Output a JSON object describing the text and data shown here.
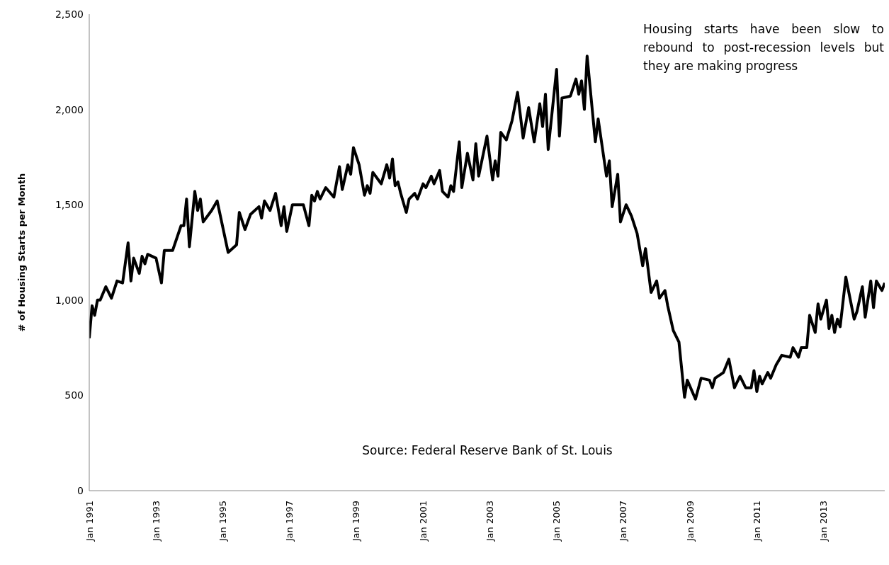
{
  "chart_data": {
    "type": "line",
    "ylabel": "# of Housing Starts per Month",
    "annotations": [
      "Housing starts have been slow to rebound to post-recession levels but they are making progress",
      "Source:  Federal Reserve Bank of St. Louis"
    ],
    "x": [
      "1991-01",
      "1991-02",
      "1991-03",
      "1991-04",
      "1991-05",
      "1991-07",
      "1991-09",
      "1991-11",
      "1992-01",
      "1992-03",
      "1992-04",
      "1992-05",
      "1992-07",
      "1992-08",
      "1992-09",
      "1992-10",
      "1993-01",
      "1993-03",
      "1993-04",
      "1993-07",
      "1993-10",
      "1993-11",
      "1993-12",
      "1994-01",
      "1994-03",
      "1994-04",
      "1994-05",
      "1994-06",
      "1994-09",
      "1994-11",
      "1995-03",
      "1995-06",
      "1995-07",
      "1995-09",
      "1995-11",
      "1996-02",
      "1996-03",
      "1996-04",
      "1996-06",
      "1996-08",
      "1996-10",
      "1996-11",
      "1996-12",
      "1997-02",
      "1997-06",
      "1997-08",
      "1997-09",
      "1997-10",
      "1997-11",
      "1997-12",
      "1998-02",
      "1998-05",
      "1998-07",
      "1998-08",
      "1998-10",
      "1998-11",
      "1998-12",
      "1999-02",
      "1999-04",
      "1999-05",
      "1999-06",
      "1999-07",
      "1999-10",
      "1999-12",
      "2000-01",
      "2000-02",
      "2000-03",
      "2000-04",
      "2000-05",
      "2000-07",
      "2000-08",
      "2000-10",
      "2000-11",
      "2001-01",
      "2001-02",
      "2001-04",
      "2001-05",
      "2001-07",
      "2001-08",
      "2001-10",
      "2001-11",
      "2001-12",
      "2002-02",
      "2002-03",
      "2002-05",
      "2002-07",
      "2002-08",
      "2002-09",
      "2002-12",
      "2003-02",
      "2003-03",
      "2003-04",
      "2003-05",
      "2003-07",
      "2003-09",
      "2003-11",
      "2004-01",
      "2004-03",
      "2004-05",
      "2004-07",
      "2004-08",
      "2004-09",
      "2004-10",
      "2005-01",
      "2005-02",
      "2005-03",
      "2005-06",
      "2005-08",
      "2005-09",
      "2005-10",
      "2005-11",
      "2005-12",
      "2006-03",
      "2006-04",
      "2006-07",
      "2006-08",
      "2006-09",
      "2006-11",
      "2006-12",
      "2007-02",
      "2007-04",
      "2007-06",
      "2007-08",
      "2007-09",
      "2007-11",
      "2008-01",
      "2008-02",
      "2008-04",
      "2008-05",
      "2008-07",
      "2008-09",
      "2008-11",
      "2008-12",
      "2009-03",
      "2009-05",
      "2009-08",
      "2009-09",
      "2009-10",
      "2009-12",
      "2010-01",
      "2010-03",
      "2010-05",
      "2010-07",
      "2010-09",
      "2010-11",
      "2010-12",
      "2011-01",
      "2011-02",
      "2011-03",
      "2011-05",
      "2011-06",
      "2011-08",
      "2011-10",
      "2012-01",
      "2012-02",
      "2012-04",
      "2012-05",
      "2012-07",
      "2012-08",
      "2012-10",
      "2012-11",
      "2012-12",
      "2013-02",
      "2013-03",
      "2013-04",
      "2013-05",
      "2013-06",
      "2013-07",
      "2013-09",
      "2013-12",
      "2014-01",
      "2014-03",
      "2014-04",
      "2014-06",
      "2014-07",
      "2014-08",
      "2014-10",
      "2014-11"
    ],
    "series": [
      {
        "color": "#000000",
        "values": [
          800,
          970,
          920,
          1000,
          1000,
          1070,
          1010,
          1100,
          1090,
          1300,
          1100,
          1220,
          1140,
          1230,
          1190,
          1240,
          1220,
          1090,
          1260,
          1260,
          1390,
          1390,
          1530,
          1280,
          1570,
          1470,
          1530,
          1410,
          1470,
          1520,
          1250,
          1290,
          1460,
          1370,
          1450,
          1490,
          1430,
          1520,
          1470,
          1560,
          1390,
          1490,
          1360,
          1500,
          1500,
          1390,
          1550,
          1520,
          1570,
          1530,
          1590,
          1540,
          1700,
          1580,
          1710,
          1660,
          1800,
          1710,
          1550,
          1600,
          1560,
          1670,
          1610,
          1710,
          1640,
          1740,
          1600,
          1620,
          1560,
          1460,
          1530,
          1560,
          1530,
          1610,
          1590,
          1650,
          1610,
          1680,
          1570,
          1540,
          1600,
          1570,
          1830,
          1590,
          1770,
          1630,
          1820,
          1650,
          1860,
          1630,
          1730,
          1650,
          1880,
          1840,
          1940,
          2090,
          1850,
          2010,
          1830,
          2030,
          1910,
          2080,
          1790,
          2210,
          1860,
          2060,
          2070,
          2160,
          2080,
          2150,
          2000,
          2280,
          1830,
          1950,
          1650,
          1730,
          1490,
          1660,
          1410,
          1500,
          1440,
          1350,
          1180,
          1270,
          1040,
          1100,
          1010,
          1050,
          970,
          840,
          780,
          490,
          580,
          480,
          590,
          580,
          540,
          590,
          610,
          620,
          690,
          540,
          600,
          540,
          540,
          630,
          520,
          600,
          560,
          620,
          590,
          660,
          710,
          700,
          750,
          700,
          750,
          750,
          920,
          830,
          980,
          900,
          1000,
          850,
          920,
          830,
          900,
          860,
          1120,
          900,
          940,
          1070,
          910,
          1100,
          960,
          1100,
          1050,
          1090
        ]
      }
    ],
    "xlim": [
      "1991-01",
      "2014-11"
    ],
    "xticks": [
      {
        "value": "1991-01",
        "label": "Jan 1991"
      },
      {
        "value": "1993-01",
        "label": "Jan 1993"
      },
      {
        "value": "1995-01",
        "label": "Jan 1995"
      },
      {
        "value": "1997-01",
        "label": "Jan 1997"
      },
      {
        "value": "1999-01",
        "label": "Jan 1999"
      },
      {
        "value": "2001-01",
        "label": "Jan 2001"
      },
      {
        "value": "2003-01",
        "label": "Jan 2003"
      },
      {
        "value": "2005-01",
        "label": "Jan 2005"
      },
      {
        "value": "2007-01",
        "label": "Jan 2007"
      },
      {
        "value": "2009-01",
        "label": "Jan 2009"
      },
      {
        "value": "2011-01",
        "label": "Jan 2011"
      },
      {
        "value": "2013-01",
        "label": "Jan 2013"
      }
    ],
    "ylim": [
      0,
      2500
    ],
    "yticks": [
      0,
      500,
      {
        "value": 1000,
        "label": "1,000"
      },
      {
        "value": 1500,
        "label": "1,500"
      },
      {
        "value": 2000,
        "label": "2,000"
      },
      {
        "value": 2500,
        "label": "2,500"
      }
    ]
  }
}
